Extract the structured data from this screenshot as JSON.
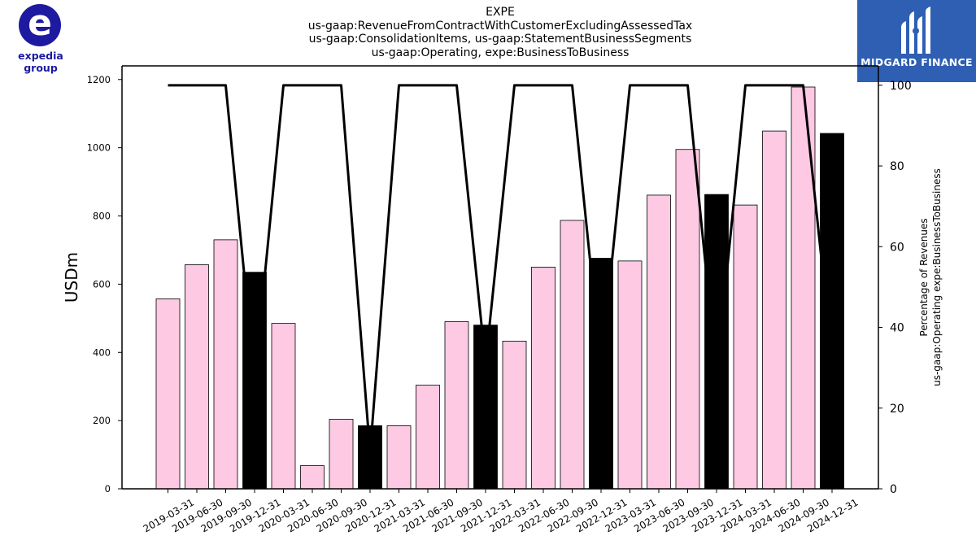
{
  "logos": {
    "left_brand": "expedia group",
    "left_mark": "e",
    "right_brand": "MIDGARD FINANCE",
    "left_color": "#1d1aa1",
    "right_color": "#2e5fb3"
  },
  "chart_data": {
    "type": "bar",
    "title_lines": [
      "EXPE",
      "us-gaap:RevenueFromContractWithCustomerExcludingAssessedTax",
      "us-gaap:ConsolidationItems, us-gaap:StatementBusinessSegments",
      "us-gaap:Operating, expe:BusinessToBusiness"
    ],
    "ylabel": "USDm",
    "y2label_lines": [
      "Percentage of Revenues",
      "us-gaap:Operating expe:BusinessToBusiness"
    ],
    "categories": [
      "2019-03-31",
      "2019-06-30",
      "2019-09-30",
      "2019-12-31",
      "2020-03-31",
      "2020-06-30",
      "2020-09-30",
      "2020-12-31",
      "2021-03-31",
      "2021-06-30",
      "2021-09-30",
      "2021-12-31",
      "2022-03-31",
      "2022-06-30",
      "2022-09-30",
      "2022-12-31",
      "2023-03-31",
      "2023-06-30",
      "2023-09-30",
      "2023-12-31",
      "2024-03-31",
      "2024-06-30",
      "2024-09-30",
      "2024-12-31"
    ],
    "values": [
      557,
      657,
      730,
      635,
      485,
      68,
      204,
      185,
      185,
      304,
      490,
      480,
      433,
      650,
      787,
      676,
      668,
      861,
      995,
      863,
      832,
      1049,
      1178,
      1042
    ],
    "bar_kind": [
      "quarter",
      "quarter",
      "quarter",
      "annual",
      "quarter",
      "quarter",
      "quarter",
      "annual",
      "quarter",
      "quarter",
      "quarter",
      "annual",
      "quarter",
      "quarter",
      "quarter",
      "annual",
      "quarter",
      "quarter",
      "quarter",
      "annual",
      "quarter",
      "quarter",
      "quarter",
      "annual"
    ],
    "quarter_color": "#fdc9e3",
    "annual_color": "#000000",
    "line_series": {
      "values": [
        100,
        100,
        100,
        27,
        100,
        100,
        100,
        9,
        100,
        100,
        100,
        31,
        100,
        100,
        100,
        30,
        100,
        100,
        100,
        28,
        100,
        100,
        100,
        32
      ],
      "color": "#000000"
    },
    "ylim": [
      0,
      1240
    ],
    "y2lim": [
      0,
      104.8
    ],
    "yticks": [
      0,
      200,
      400,
      600,
      800,
      1000,
      1200
    ],
    "y2ticks": [
      0,
      20,
      40,
      60,
      80,
      100
    ]
  }
}
